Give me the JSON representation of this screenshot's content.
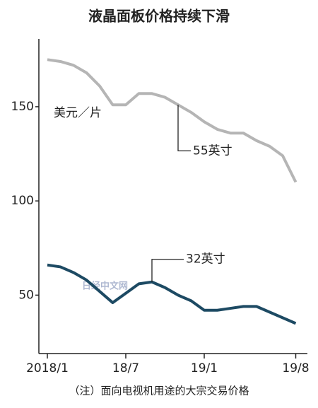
{
  "chart_data": {
    "type": "line",
    "title": "液晶面板价格持续下滑",
    "y_unit": "美元／片",
    "note": "（注）面向电视机用途的大宗交易价格",
    "watermark": "日经中文网",
    "categories": [
      "2018/1",
      null,
      null,
      null,
      null,
      null,
      "18/7",
      null,
      null,
      null,
      null,
      null,
      "19/1",
      null,
      null,
      null,
      null,
      null,
      null,
      "19/8"
    ],
    "series": [
      {
        "name": "55英寸",
        "color": "#b5b5b5",
        "values": [
          175,
          174,
          172,
          168,
          161,
          151,
          151,
          157,
          157,
          155,
          151,
          147,
          142,
          138,
          136,
          136,
          132,
          129,
          124,
          110
        ]
      },
      {
        "name": "32英寸",
        "color": "#1d4a63",
        "values": [
          66,
          65,
          62,
          58,
          52,
          46,
          51,
          56,
          57,
          54,
          50,
          47,
          42,
          42,
          43,
          44,
          44,
          41,
          38,
          35
        ]
      }
    ],
    "ylim": [
      19,
      186
    ],
    "yticks": [
      50,
      100,
      150
    ],
    "grid": false
  }
}
